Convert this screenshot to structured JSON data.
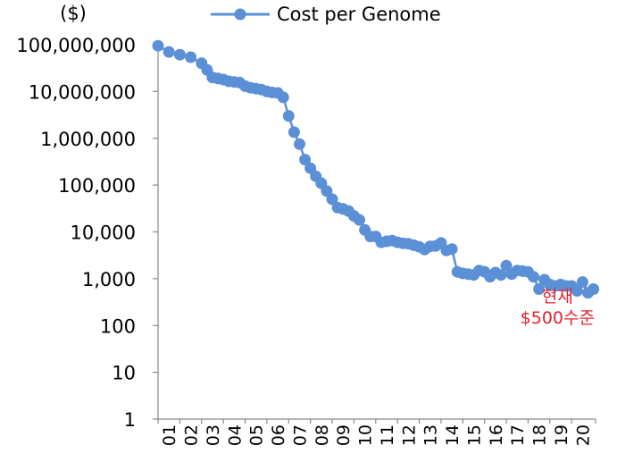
{
  "chart_data": {
    "type": "line",
    "title": "",
    "xlabel": "",
    "ylabel": "",
    "y_unit": "($)",
    "y_scale": "log",
    "ylim": [
      1,
      100000000
    ],
    "yticks": [
      1,
      10,
      100,
      1000,
      10000,
      100000,
      1000000,
      10000000,
      100000000
    ],
    "ytick_labels": [
      "1",
      "10",
      "100",
      "1,000",
      "10,000",
      "100,000",
      "1,000,000",
      "10,000,000",
      "100,000,000"
    ],
    "xlim": [
      2001,
      2021.1
    ],
    "xtick_labels": [
      "01",
      "02",
      "03",
      "04",
      "05",
      "06",
      "07",
      "08",
      "09",
      "10",
      "11",
      "12",
      "13",
      "14",
      "15",
      "16",
      "17",
      "18",
      "19",
      "20"
    ],
    "legend": {
      "placement": "top",
      "entries": [
        "Cost per Genome"
      ]
    },
    "grid": false,
    "series": [
      {
        "name": "Cost per Genome",
        "color": "#5b8fd6",
        "marker": "circle",
        "x": [
          2001.0,
          2001.5,
          2002.0,
          2002.5,
          2003.0,
          2003.25,
          2003.5,
          2003.75,
          2004.0,
          2004.25,
          2004.5,
          2004.75,
          2005.0,
          2005.25,
          2005.5,
          2005.75,
          2006.0,
          2006.25,
          2006.5,
          2006.75,
          2007.0,
          2007.25,
          2007.5,
          2007.75,
          2008.0,
          2008.25,
          2008.5,
          2008.75,
          2009.0,
          2009.25,
          2009.5,
          2009.75,
          2010.0,
          2010.25,
          2010.5,
          2010.75,
          2011.0,
          2011.25,
          2011.5,
          2011.75,
          2012.0,
          2012.25,
          2012.5,
          2012.75,
          2013.0,
          2013.25,
          2013.5,
          2013.75,
          2014.0,
          2014.25,
          2014.5,
          2014.75,
          2015.0,
          2015.25,
          2015.5,
          2015.75,
          2016.0,
          2016.25,
          2016.5,
          2016.75,
          2017.0,
          2017.25,
          2017.5,
          2017.75,
          2018.0,
          2018.25,
          2018.5,
          2018.75,
          2019.0,
          2019.25,
          2019.5,
          2019.75,
          2020.0,
          2020.25,
          2020.5,
          2020.75,
          2021.0
        ],
        "values": [
          95000000,
          70000000,
          61000000,
          54000000,
          40000000,
          29000000,
          20000000,
          19000000,
          18000000,
          16500000,
          16000000,
          15500000,
          13000000,
          12000000,
          11500000,
          11000000,
          10000000,
          9500000,
          9300000,
          7500000,
          3000000,
          1350000,
          750000,
          350000,
          230000,
          155000,
          110000,
          75000,
          50000,
          33000,
          31000,
          28000,
          22000,
          18000,
          11000,
          8000,
          8000,
          6000,
          6300,
          6500,
          6000,
          5700,
          5600,
          5200,
          4800,
          4200,
          4900,
          5000,
          5800,
          4000,
          4300,
          1400,
          1300,
          1250,
          1200,
          1500,
          1400,
          1100,
          1350,
          1200,
          1900,
          1250,
          1500,
          1450,
          1400,
          1100,
          600,
          950,
          750,
          700,
          750,
          700,
          700,
          550,
          850,
          500,
          600
        ]
      }
    ],
    "annotations": [
      {
        "text": "현재",
        "x": 2019.35,
        "y": 430
      },
      {
        "text": "$500수준",
        "x": 2019.35,
        "y": 150
      }
    ]
  }
}
